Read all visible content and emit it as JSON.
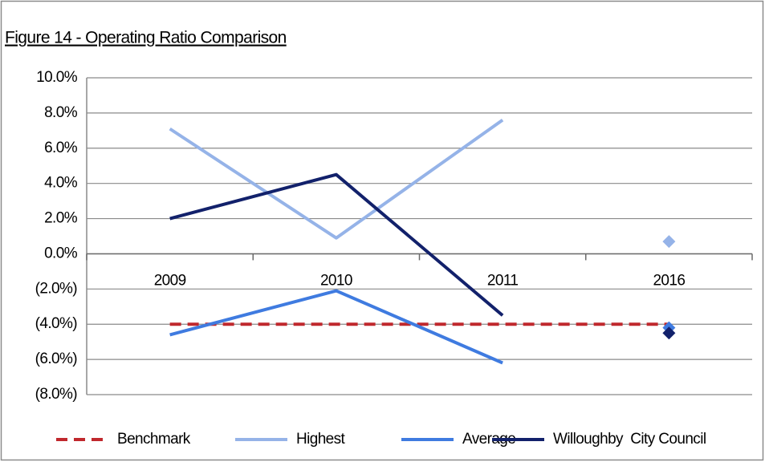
{
  "chart_data": {
    "type": "line",
    "title": "Figure 14 - Operating Ratio Comparison",
    "categories": [
      "2009",
      "2010",
      "2011",
      "2016"
    ],
    "series": [
      {
        "name": "Benchmark",
        "color": "#c0282d",
        "dashed": true,
        "last_as_marker": false,
        "values": [
          -4.0,
          -4.0,
          -4.0,
          -4.0
        ]
      },
      {
        "name": "Highest",
        "color": "#95b3e8",
        "dashed": false,
        "last_as_marker": true,
        "values": [
          7.1,
          0.9,
          7.6,
          0.7
        ]
      },
      {
        "name": "Average",
        "color": "#3f7be0",
        "dashed": false,
        "last_as_marker": true,
        "values": [
          -4.6,
          -2.1,
          -6.2,
          -4.2
        ]
      },
      {
        "name": "Willoughby  City Council",
        "color": "#12216b",
        "dashed": false,
        "last_as_marker": true,
        "values": [
          2.0,
          4.5,
          -3.5,
          -4.5
        ]
      }
    ],
    "ylim": [
      -8,
      10
    ],
    "yticks": [
      {
        "value": -8,
        "label": "(8.0%)"
      },
      {
        "value": -6,
        "label": "(6.0%)"
      },
      {
        "value": -4,
        "label": "(4.0%)"
      },
      {
        "value": -2,
        "label": "(2.0%)"
      },
      {
        "value": 0,
        "label": "0.0%"
      },
      {
        "value": 2,
        "label": "2.0%"
      },
      {
        "value": 4,
        "label": "4.0%"
      },
      {
        "value": 6,
        "label": "6.0%"
      },
      {
        "value": 8,
        "label": "8.0%"
      },
      {
        "value": 10,
        "label": "10.0%"
      }
    ],
    "grid": true,
    "legend": "bottom"
  }
}
